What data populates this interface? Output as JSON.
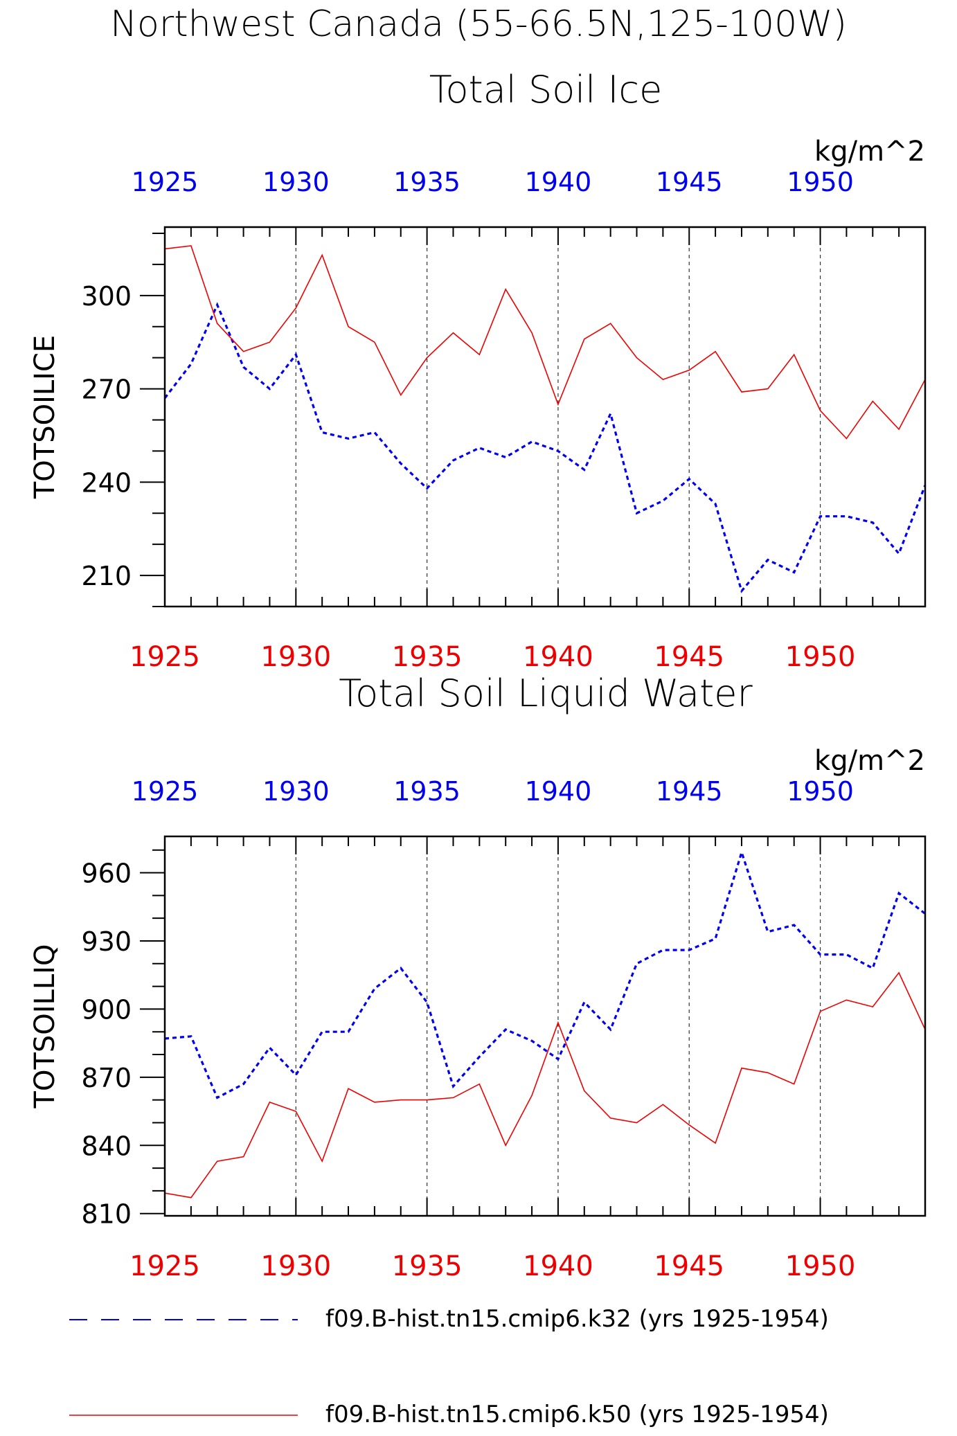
{
  "page": {
    "title_line1": "Northwest Canada (55-66.5N,125-100W)"
  },
  "colors": {
    "blue": "#0000ee",
    "red": "#ee0000",
    "black": "#000000",
    "grid": "#333333"
  },
  "legend": [
    {
      "label": "f09.B-hist.tn15.cmip6.k32 (yrs 1925-1954)",
      "color": "#0000ee",
      "style": "dashed"
    },
    {
      "label": "f09.B-hist.tn15.cmip6.k50 (yrs 1925-1954)",
      "color": "#ee0000",
      "style": "solid"
    }
  ],
  "chart_data": [
    {
      "type": "line",
      "title": "Total Soil Ice",
      "ylabel": "TOTSOILICE",
      "units": "kg/m^2",
      "xlim": [
        1925,
        1954
      ],
      "ylim": [
        200,
        322
      ],
      "yticks": [
        210,
        240,
        270,
        300
      ],
      "xticks": [
        1925,
        1930,
        1935,
        1940,
        1945,
        1950
      ],
      "grid_x": [
        1930,
        1935,
        1940,
        1945,
        1950
      ],
      "x": [
        1925,
        1926,
        1927,
        1928,
        1929,
        1930,
        1931,
        1932,
        1933,
        1934,
        1935,
        1936,
        1937,
        1938,
        1939,
        1940,
        1941,
        1942,
        1943,
        1944,
        1945,
        1946,
        1947,
        1948,
        1949,
        1950,
        1951,
        1952,
        1953,
        1954
      ],
      "series": [
        {
          "color": "#0000ee",
          "style": "dashed",
          "values": [
            267,
            278,
            297,
            277,
            270,
            281,
            256,
            254,
            256,
            246,
            238,
            247,
            251,
            248,
            253,
            250,
            244,
            262,
            230,
            234,
            241,
            233,
            205,
            215,
            211,
            229,
            229,
            227,
            217,
            239
          ]
        },
        {
          "color": "#ee0000",
          "style": "solid",
          "values": [
            315,
            316,
            291,
            282,
            285,
            296,
            313,
            290,
            285,
            268,
            280,
            288,
            281,
            302,
            288,
            265,
            286,
            291,
            280,
            273,
            276,
            282,
            269,
            270,
            281,
            263,
            254,
            266,
            257,
            273
          ]
        }
      ]
    },
    {
      "type": "line",
      "title": "Total Soil Liquid Water",
      "ylabel": "TOTSOILLIQ",
      "units": "kg/m^2",
      "xlim": [
        1925,
        1954
      ],
      "ylim": [
        809,
        976
      ],
      "yticks": [
        810,
        840,
        870,
        900,
        930,
        960
      ],
      "xticks": [
        1925,
        1930,
        1935,
        1940,
        1945,
        1950
      ],
      "grid_x": [
        1930,
        1935,
        1940,
        1945,
        1950
      ],
      "x": [
        1925,
        1926,
        1927,
        1928,
        1929,
        1930,
        1931,
        1932,
        1933,
        1934,
        1935,
        1936,
        1937,
        1938,
        1939,
        1940,
        1941,
        1942,
        1943,
        1944,
        1945,
        1946,
        1947,
        1948,
        1949,
        1950,
        1951,
        1952,
        1953,
        1954
      ],
      "series": [
        {
          "color": "#0000ee",
          "style": "dashed",
          "values": [
            887,
            888,
            861,
            867,
            883,
            871,
            890,
            890,
            909,
            918,
            903,
            866,
            879,
            891,
            886,
            878,
            903,
            891,
            920,
            926,
            926,
            931,
            969,
            934,
            937,
            924,
            924,
            918,
            951,
            942
          ]
        },
        {
          "color": "#ee0000",
          "style": "solid",
          "values": [
            819,
            817,
            833,
            835,
            859,
            855,
            833,
            865,
            859,
            860,
            860,
            861,
            867,
            840,
            862,
            894,
            864,
            852,
            850,
            858,
            849,
            841,
            874,
            872,
            867,
            899,
            904,
            901,
            916,
            891
          ]
        }
      ]
    }
  ]
}
